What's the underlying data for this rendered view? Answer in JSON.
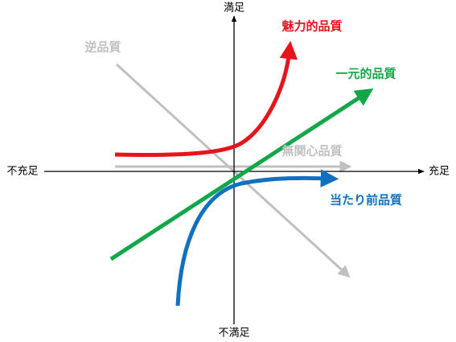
{
  "axes": {
    "top": "満足",
    "bottom": "不満足",
    "left": "不充足",
    "right": "充足"
  },
  "curves": [
    {
      "label": "魅力的品質"
    },
    {
      "label": "一元的品質"
    },
    {
      "label": "無関心品質"
    },
    {
      "label": "当たり前品質"
    },
    {
      "label": "逆品質"
    }
  ]
}
